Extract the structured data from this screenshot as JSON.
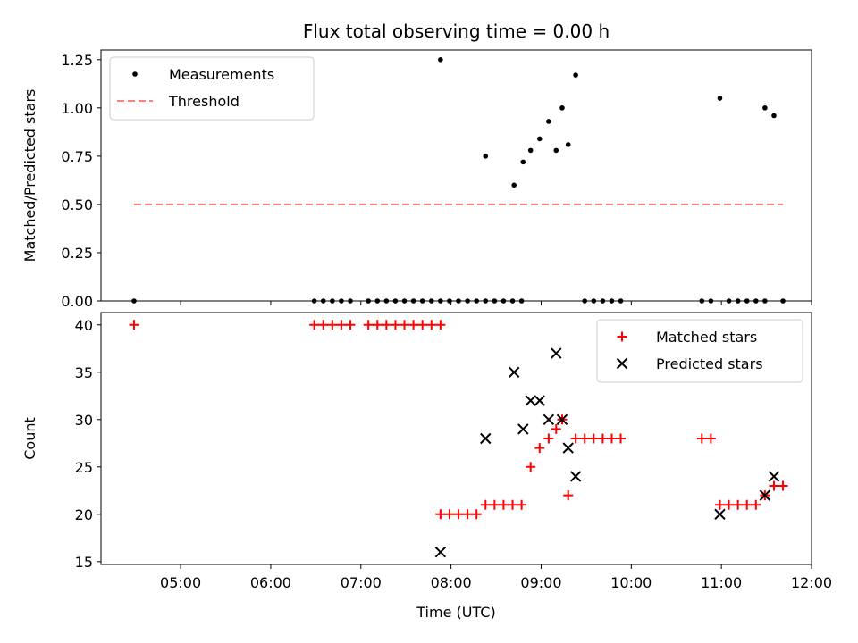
{
  "chart_data": [
    {
      "type": "scatter",
      "title": "Flux total observing time = 0.00 h",
      "xlabel": "",
      "ylabel": "Matched/Predicted stars",
      "x_unit": "hours UTC",
      "xlim": [
        "04:07",
        "12:00"
      ],
      "ylim": [
        0.0,
        1.3
      ],
      "yticks": [
        "0.00",
        "0.25",
        "0.50",
        "0.75",
        "1.00",
        "1.25"
      ],
      "grid": false,
      "legend": "top-left",
      "series": [
        {
          "name": "Measurements",
          "color": "#000000",
          "marker": "dot",
          "points": [
            [
              "04:29",
              0.0
            ],
            [
              "06:29",
              0.0
            ],
            [
              "06:35",
              0.0
            ],
            [
              "06:41",
              0.0
            ],
            [
              "06:47",
              0.0
            ],
            [
              "06:53",
              0.0
            ],
            [
              "07:05",
              0.0
            ],
            [
              "07:11",
              0.0
            ],
            [
              "07:17",
              0.0
            ],
            [
              "07:23",
              0.0
            ],
            [
              "07:29",
              0.0
            ],
            [
              "07:35",
              0.0
            ],
            [
              "07:41",
              0.0
            ],
            [
              "07:47",
              0.0
            ],
            [
              "07:53",
              0.0
            ],
            [
              "07:59",
              0.0
            ],
            [
              "08:05",
              0.0
            ],
            [
              "08:11",
              0.0
            ],
            [
              "08:17",
              0.0
            ],
            [
              "08:23",
              0.0
            ],
            [
              "08:29",
              0.0
            ],
            [
              "08:35",
              0.0
            ],
            [
              "08:41",
              0.0
            ],
            [
              "08:47",
              0.0
            ],
            [
              "07:53",
              1.25
            ],
            [
              "08:23",
              0.75
            ],
            [
              "08:42",
              0.6
            ],
            [
              "08:48",
              0.72
            ],
            [
              "08:53",
              0.78
            ],
            [
              "08:59",
              0.84
            ],
            [
              "09:05",
              0.93
            ],
            [
              "09:10",
              0.78
            ],
            [
              "09:14",
              1.0
            ],
            [
              "09:18",
              0.81
            ],
            [
              "09:23",
              1.17
            ],
            [
              "09:29",
              0.0
            ],
            [
              "09:35",
              0.0
            ],
            [
              "09:41",
              0.0
            ],
            [
              "09:47",
              0.0
            ],
            [
              "09:53",
              0.0
            ],
            [
              "10:47",
              0.0
            ],
            [
              "10:53",
              0.0
            ],
            [
              "10:59",
              1.05
            ],
            [
              "11:05",
              0.0
            ],
            [
              "11:11",
              0.0
            ],
            [
              "11:17",
              0.0
            ],
            [
              "11:23",
              0.0
            ],
            [
              "11:29",
              0.0
            ],
            [
              "11:29",
              1.0
            ],
            [
              "11:35",
              0.96
            ],
            [
              "11:41",
              0.0
            ]
          ]
        },
        {
          "name": "Threshold",
          "color": "#ff7f7f",
          "marker": "dashed-line",
          "points": [
            [
              "04:29",
              0.5
            ],
            [
              "11:41",
              0.5
            ]
          ]
        }
      ]
    },
    {
      "type": "scatter",
      "title": "",
      "xlabel": "Time (UTC)",
      "ylabel": "Count",
      "x_unit": "hours UTC",
      "xlim": [
        "04:07",
        "12:00"
      ],
      "xticks": [
        "05:00",
        "06:00",
        "07:00",
        "08:00",
        "09:00",
        "10:00",
        "11:00",
        "12:00"
      ],
      "ylim": [
        14.7,
        41.3
      ],
      "yticks": [
        "15",
        "20",
        "25",
        "30",
        "35",
        "40"
      ],
      "grid": false,
      "legend": "top-right",
      "series": [
        {
          "name": "Matched stars",
          "color": "#ff0000",
          "marker": "plus",
          "points": [
            [
              "04:29",
              40
            ],
            [
              "06:29",
              40
            ],
            [
              "06:35",
              40
            ],
            [
              "06:41",
              40
            ],
            [
              "06:47",
              40
            ],
            [
              "06:53",
              40
            ],
            [
              "07:05",
              40
            ],
            [
              "07:11",
              40
            ],
            [
              "07:17",
              40
            ],
            [
              "07:23",
              40
            ],
            [
              "07:29",
              40
            ],
            [
              "07:35",
              40
            ],
            [
              "07:41",
              40
            ],
            [
              "07:47",
              40
            ],
            [
              "07:53",
              40
            ],
            [
              "07:53",
              20
            ],
            [
              "07:59",
              20
            ],
            [
              "08:05",
              20
            ],
            [
              "08:11",
              20
            ],
            [
              "08:17",
              20
            ],
            [
              "08:23",
              21
            ],
            [
              "08:29",
              21
            ],
            [
              "08:35",
              21
            ],
            [
              "08:41",
              21
            ],
            [
              "08:47",
              21
            ],
            [
              "08:53",
              25
            ],
            [
              "08:59",
              27
            ],
            [
              "09:05",
              28
            ],
            [
              "09:10",
              29
            ],
            [
              "09:14",
              30
            ],
            [
              "09:18",
              22
            ],
            [
              "09:23",
              28
            ],
            [
              "09:29",
              28
            ],
            [
              "09:35",
              28
            ],
            [
              "09:41",
              28
            ],
            [
              "09:47",
              28
            ],
            [
              "09:53",
              28
            ],
            [
              "10:47",
              28
            ],
            [
              "10:53",
              28
            ],
            [
              "10:59",
              21
            ],
            [
              "11:05",
              21
            ],
            [
              "11:11",
              21
            ],
            [
              "11:17",
              21
            ],
            [
              "11:23",
              21
            ],
            [
              "11:29",
              22
            ],
            [
              "11:35",
              23
            ],
            [
              "11:41",
              23
            ]
          ]
        },
        {
          "name": "Predicted stars",
          "color": "#000000",
          "marker": "x",
          "points": [
            [
              "07:53",
              16
            ],
            [
              "08:23",
              28
            ],
            [
              "08:42",
              35
            ],
            [
              "08:48",
              29
            ],
            [
              "08:53",
              32
            ],
            [
              "08:59",
              32
            ],
            [
              "09:05",
              30
            ],
            [
              "09:10",
              37
            ],
            [
              "09:14",
              30
            ],
            [
              "09:18",
              27
            ],
            [
              "09:23",
              24
            ],
            [
              "10:59",
              20
            ],
            [
              "11:29",
              22
            ],
            [
              "11:35",
              24
            ]
          ]
        }
      ]
    }
  ]
}
